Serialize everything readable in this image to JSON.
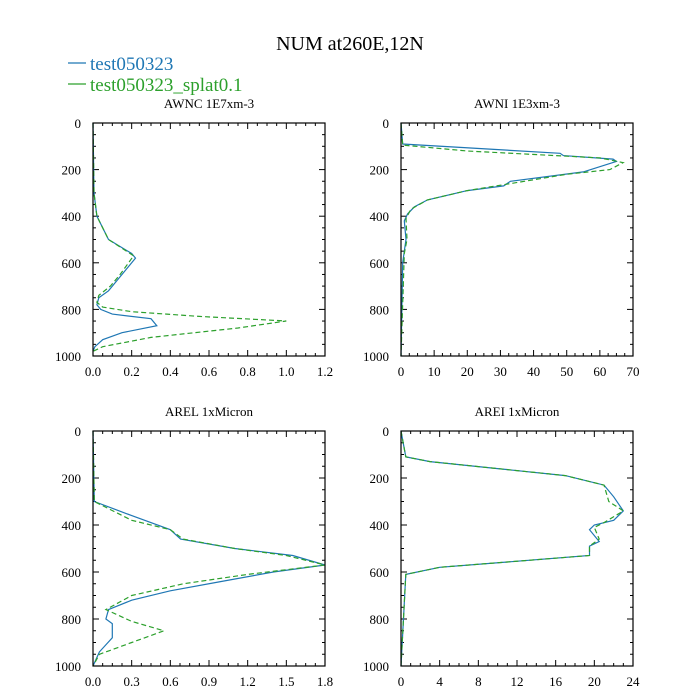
{
  "figure_title": "NUM at260E,12N",
  "legend": [
    {
      "label": "test050323",
      "color": "#1f77b4",
      "dash": "solid"
    },
    {
      "label": "test050323_splat0.1",
      "color": "#2ca02c",
      "dash": "dashed"
    }
  ],
  "chart_data": [
    {
      "type": "line",
      "title": "AWNC  1E7xm-3",
      "xlim": [
        0,
        1.2
      ],
      "xticks": [
        0,
        0.2,
        0.4,
        0.6,
        0.8,
        1.0,
        1.2
      ],
      "xtick_labels": [
        "0.0",
        "0.2",
        "0.4",
        "0.6",
        "0.8",
        "1.0",
        "1.2"
      ],
      "ylim": [
        1000,
        0
      ],
      "yticks": [
        0,
        200,
        400,
        600,
        800,
        1000
      ],
      "ytick_labels": [
        "0",
        "200",
        "400",
        "600",
        "800",
        "1000"
      ],
      "series": [
        {
          "name": "test050323",
          "x": [
            0,
            0.005,
            0.02,
            0.08,
            0.2,
            0.22,
            0.14,
            0.08,
            0.03,
            0.02,
            0.04,
            0.1,
            0.3,
            0.33,
            0.15,
            0.05,
            0.01,
            0
          ],
          "y": [
            0,
            300,
            400,
            500,
            560,
            580,
            660,
            720,
            750,
            780,
            800,
            820,
            840,
            870,
            900,
            930,
            960,
            980
          ]
        },
        {
          "name": "test050323_splat0.1",
          "x": [
            0,
            0.005,
            0.02,
            0.08,
            0.21,
            0.14,
            0.09,
            0.03,
            0.02,
            0.05,
            0.2,
            0.55,
            1.0,
            0.75,
            0.3,
            0.05,
            0
          ],
          "y": [
            0,
            300,
            400,
            500,
            570,
            650,
            700,
            740,
            770,
            790,
            810,
            830,
            850,
            880,
            920,
            960,
            980
          ]
        }
      ]
    },
    {
      "type": "line",
      "title": "AWNI  1E3xm-3",
      "xlim": [
        0,
        70
      ],
      "xticks": [
        0,
        10,
        20,
        30,
        40,
        50,
        60,
        70
      ],
      "xtick_labels": [
        "0",
        "10",
        "20",
        "30",
        "40",
        "50",
        "60",
        "70"
      ],
      "ylim": [
        1000,
        0
      ],
      "yticks": [
        0,
        200,
        400,
        600,
        800,
        1000
      ],
      "ytick_labels": [
        "0",
        "200",
        "400",
        "600",
        "800",
        "1000"
      ],
      "series": [
        {
          "name": "test050323",
          "x": [
            0,
            0.5,
            48,
            49,
            64,
            65,
            55,
            33,
            31,
            20,
            8,
            4,
            2,
            1,
            1.5,
            1,
            0.5,
            0
          ],
          "y": [
            0,
            90,
            130,
            140,
            155,
            165,
            210,
            250,
            270,
            290,
            330,
            360,
            390,
            420,
            500,
            550,
            600,
            1000
          ]
        },
        {
          "name": "test050323_splat0.1",
          "x": [
            0,
            0.5,
            20,
            60,
            67,
            63,
            50,
            33,
            20,
            8,
            3,
            1.5,
            1.8,
            1,
            0
          ],
          "y": [
            0,
            95,
            120,
            150,
            170,
            200,
            220,
            260,
            290,
            330,
            370,
            410,
            500,
            560,
            1000
          ]
        }
      ]
    },
    {
      "type": "line",
      "title": "AREL  1xMicron",
      "xlim": [
        0,
        1.8
      ],
      "xticks": [
        0,
        0.3,
        0.6,
        0.9,
        1.2,
        1.5,
        1.8
      ],
      "xtick_labels": [
        "0.0",
        "0.3",
        "0.6",
        "0.9",
        "1.2",
        "1.5",
        "1.8"
      ],
      "ylim": [
        1000,
        0
      ],
      "yticks": [
        0,
        200,
        400,
        600,
        800,
        1000
      ],
      "ytick_labels": [
        "0",
        "200",
        "400",
        "600",
        "800",
        "1000"
      ],
      "series": [
        {
          "name": "test050323",
          "x": [
            0,
            0.01,
            0.3,
            0.6,
            0.68,
            1.1,
            1.55,
            1.8,
            1.4,
            1.0,
            0.6,
            0.3,
            0.12,
            0.1,
            0.15,
            0.15,
            0.05,
            0
          ],
          "y": [
            0,
            300,
            360,
            420,
            460,
            500,
            530,
            570,
            600,
            640,
            680,
            720,
            760,
            800,
            820,
            880,
            940,
            1000
          ]
        },
        {
          "name": "test050323_splat0.1",
          "x": [
            0,
            0.01,
            0.3,
            0.6,
            0.7,
            1.1,
            1.5,
            1.8,
            1.2,
            0.7,
            0.3,
            0.1,
            0.3,
            0.55,
            0.3,
            0.05,
            0
          ],
          "y": [
            0,
            300,
            380,
            420,
            460,
            500,
            530,
            570,
            610,
            650,
            700,
            760,
            810,
            850,
            900,
            950,
            1000
          ]
        }
      ]
    },
    {
      "type": "line",
      "title": "AREI  1xMicron",
      "xlim": [
        0,
        24
      ],
      "xticks": [
        0,
        4,
        8,
        12,
        16,
        20,
        24
      ],
      "xtick_labels": [
        "0",
        "4",
        "8",
        "12",
        "16",
        "20",
        "24"
      ],
      "ylim": [
        1000,
        0
      ],
      "yticks": [
        0,
        200,
        400,
        600,
        800,
        1000
      ],
      "ytick_labels": [
        "0",
        "200",
        "400",
        "600",
        "800",
        "1000"
      ],
      "series": [
        {
          "name": "test050323",
          "x": [
            0,
            0.5,
            3,
            10,
            17,
            21,
            22,
            23,
            22,
            20,
            19.5,
            20.5,
            19.5,
            19.5,
            4,
            0.5,
            0
          ],
          "y": [
            0,
            110,
            130,
            160,
            190,
            230,
            280,
            340,
            380,
            400,
            420,
            470,
            490,
            530,
            580,
            610,
            1000
          ]
        },
        {
          "name": "test050323_splat0.1",
          "x": [
            0,
            0.5,
            3,
            10,
            17,
            21,
            21.5,
            23,
            21,
            20,
            20.5,
            19.5,
            19.5,
            4,
            0.5,
            0
          ],
          "y": [
            0,
            110,
            130,
            160,
            190,
            230,
            300,
            340,
            390,
            410,
            460,
            490,
            530,
            580,
            610,
            1000
          ]
        }
      ]
    }
  ]
}
